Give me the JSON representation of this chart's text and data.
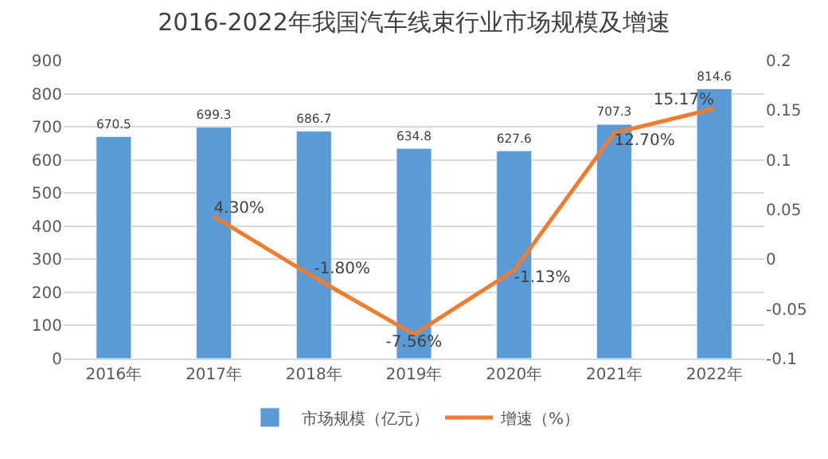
{
  "chart_data": {
    "type": "bar",
    "title": "2016-2022年我国汽车线束行业市场规模及增速",
    "categories": [
      "2016年",
      "2017年",
      "2018年",
      "2019年",
      "2020年",
      "2021年",
      "2022年"
    ],
    "series": [
      {
        "name": "市场规模（亿元）",
        "color": "#5b9bd5",
        "values": [
          670.5,
          699.3,
          686.7,
          634.8,
          627.6,
          707.3,
          814.6
        ],
        "value_labels": [
          "670.5",
          "699.3",
          "686.7",
          "634.8",
          "627.6",
          "707.3",
          "814.6"
        ]
      },
      {
        "name": "增速（%）",
        "type": "line",
        "axis": "y2",
        "color": "#ed7d31",
        "values": [
          null,
          0.043,
          -0.018,
          -0.0756,
          -0.0113,
          0.127,
          0.1517
        ],
        "value_labels": [
          null,
          "4.30%",
          "-1.80%",
          "-7.56%",
          "-1.13%",
          "12.70%",
          "15.17%"
        ]
      }
    ],
    "ylim": [
      0,
      900
    ],
    "yticks": [
      0,
      100,
      200,
      300,
      400,
      500,
      600,
      700,
      800,
      900
    ],
    "y2lim": [
      -0.1,
      0.2
    ],
    "y2ticks": [
      -0.1,
      -0.05,
      0,
      0.05,
      0.1,
      0.15,
      0.2
    ],
    "grid": "y",
    "legend": "bottom",
    "marker": "none",
    "line_style": "solid"
  }
}
